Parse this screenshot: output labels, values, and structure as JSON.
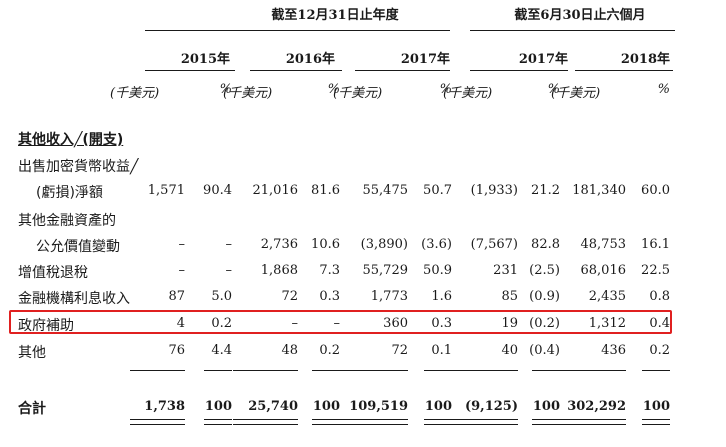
{
  "header": {
    "group1": "截至12月31日止年度",
    "group2": "截至6月30日止六個月",
    "years": [
      "2015年",
      "2016年",
      "2017年",
      "2017年",
      "2018年"
    ],
    "unit_amount": "(千美元)",
    "unit_pct": "%"
  },
  "section_title": "其他收入╱(開支)",
  "rows": [
    {
      "label": "出售加密貨幣收益╱",
      "values": [
        "",
        "",
        "",
        "",
        "",
        "",
        "",
        "",
        "",
        ""
      ]
    },
    {
      "label": "(虧損)淨額",
      "values": [
        "1,571",
        "90.4",
        "21,016",
        "81.6",
        "55,475",
        "50.7",
        "(1,933)",
        "21.2",
        "181,340",
        "60.0"
      ]
    },
    {
      "label": "其他金融資產的",
      "values": [
        "",
        "",
        "",
        "",
        "",
        "",
        "",
        "",
        "",
        ""
      ]
    },
    {
      "label": "公允價值變動",
      "values": [
        "–",
        "–",
        "2,736",
        "10.6",
        "(3,890)",
        "(3.6)",
        "(7,567)",
        "82.8",
        "48,753",
        "16.1"
      ]
    },
    {
      "label": "增值稅退稅",
      "values": [
        "–",
        "–",
        "1,868",
        "7.3",
        "55,729",
        "50.9",
        "231",
        "(2.5)",
        "68,016",
        "22.5"
      ]
    },
    {
      "label": "金融機構利息收入",
      "values": [
        "87",
        "5.0",
        "72",
        "0.3",
        "1,773",
        "1.6",
        "85",
        "(0.9)",
        "2,435",
        "0.8"
      ]
    },
    {
      "label": "政府補助",
      "values": [
        "4",
        "0.2",
        "–",
        "–",
        "360",
        "0.3",
        "19",
        "(0.2)",
        "1,312",
        "0.4"
      ]
    },
    {
      "label": "其他",
      "values": [
        "76",
        "4.4",
        "48",
        "0.2",
        "72",
        "0.1",
        "40",
        "(0.4)",
        "436",
        "0.2"
      ]
    }
  ],
  "total": {
    "label": "合計",
    "values": [
      "1,738",
      "100",
      "25,740",
      "100",
      "109,519",
      "100",
      "(9,125)",
      "100",
      "302,292",
      "100"
    ]
  },
  "colors": {
    "highlight": "#e02020"
  }
}
